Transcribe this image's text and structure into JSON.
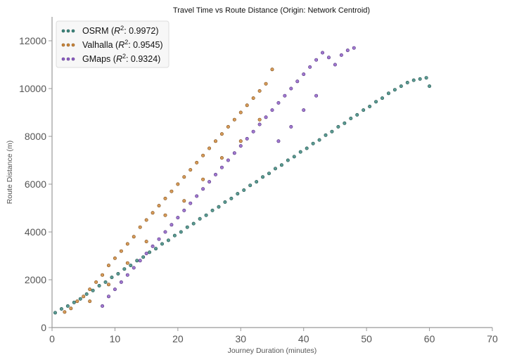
{
  "chart_data": {
    "type": "scatter",
    "title": "Travel Time vs Route Distance (Origin: Network Centroid)",
    "xlabel": "Journey Duration (minutes)",
    "ylabel": "Route Distance (m)",
    "xlim": [
      0,
      70
    ],
    "ylim": [
      0,
      13000
    ],
    "xticks": [
      0,
      10,
      20,
      30,
      40,
      50,
      60,
      70
    ],
    "yticks": [
      0,
      2000,
      4000,
      6000,
      8000,
      10000,
      12000
    ],
    "grid": false,
    "legend_position": "top-left",
    "series": [
      {
        "name": "OSRM",
        "r2_label": "0.9972",
        "color": "#3e8a80",
        "edge": "#1f4f4a",
        "points": [
          [
            0.5,
            620
          ],
          [
            1.5,
            780
          ],
          [
            2.5,
            900
          ],
          [
            3.5,
            1050
          ],
          [
            4.5,
            1200
          ],
          [
            5.5,
            1400
          ],
          [
            6.5,
            1550
          ],
          [
            7.5,
            1750
          ],
          [
            8.5,
            1900
          ],
          [
            9.5,
            2100
          ],
          [
            10.5,
            2250
          ],
          [
            11.5,
            2450
          ],
          [
            12.5,
            2600
          ],
          [
            13.5,
            2800
          ],
          [
            14.5,
            2950
          ],
          [
            15.5,
            3150
          ],
          [
            16.5,
            3300
          ],
          [
            17.5,
            3500
          ],
          [
            18.5,
            3650
          ],
          [
            19.5,
            3850
          ],
          [
            20.5,
            4000
          ],
          [
            21.5,
            4200
          ],
          [
            22.5,
            4350
          ],
          [
            23.5,
            4550
          ],
          [
            24.5,
            4700
          ],
          [
            25.5,
            4900
          ],
          [
            26.5,
            5050
          ],
          [
            27.5,
            5250
          ],
          [
            28.5,
            5400
          ],
          [
            29.5,
            5600
          ],
          [
            30.5,
            5750
          ],
          [
            31.5,
            5950
          ],
          [
            32.5,
            6100
          ],
          [
            33.5,
            6300
          ],
          [
            34.5,
            6450
          ],
          [
            35.5,
            6650
          ],
          [
            36.5,
            6800
          ],
          [
            37.5,
            7000
          ],
          [
            38.5,
            7150
          ],
          [
            39.5,
            7350
          ],
          [
            40.5,
            7500
          ],
          [
            41.5,
            7700
          ],
          [
            42.5,
            7850
          ],
          [
            43.5,
            8050
          ],
          [
            44.5,
            8200
          ],
          [
            45.5,
            8400
          ],
          [
            46.5,
            8550
          ],
          [
            47.5,
            8750
          ],
          [
            48.5,
            8900
          ],
          [
            49.5,
            9100
          ],
          [
            50.5,
            9250
          ],
          [
            51.5,
            9450
          ],
          [
            52.5,
            9600
          ],
          [
            53.5,
            9800
          ],
          [
            54.5,
            9950
          ],
          [
            55.5,
            10100
          ],
          [
            56.5,
            10250
          ],
          [
            57.5,
            10350
          ],
          [
            58.5,
            10400
          ],
          [
            59.5,
            10450
          ],
          [
            60,
            10100
          ]
        ]
      },
      {
        "name": "Valhalla",
        "r2_label": "0.9545",
        "color": "#d08a3c",
        "edge": "#7a4a16",
        "points": [
          [
            2,
            650
          ],
          [
            3,
            800
          ],
          [
            4,
            1100
          ],
          [
            5,
            1300
          ],
          [
            6,
            1600
          ],
          [
            7,
            1900
          ],
          [
            8,
            2200
          ],
          [
            9,
            2600
          ],
          [
            10,
            2900
          ],
          [
            11,
            3200
          ],
          [
            12,
            3500
          ],
          [
            13,
            3800
          ],
          [
            14,
            4200
          ],
          [
            15,
            4500
          ],
          [
            16,
            4800
          ],
          [
            17,
            5100
          ],
          [
            18,
            5400
          ],
          [
            19,
            5700
          ],
          [
            20,
            6000
          ],
          [
            21,
            6300
          ],
          [
            22,
            6600
          ],
          [
            23,
            6900
          ],
          [
            24,
            7200
          ],
          [
            25,
            7500
          ],
          [
            26,
            7800
          ],
          [
            27,
            8100
          ],
          [
            28,
            8400
          ],
          [
            29,
            8700
          ],
          [
            30,
            9000
          ],
          [
            31,
            9300
          ],
          [
            32,
            9600
          ],
          [
            33,
            9900
          ],
          [
            34,
            10200
          ],
          [
            35,
            10800
          ],
          [
            6,
            1100
          ],
          [
            9,
            1800
          ],
          [
            12,
            2700
          ],
          [
            15,
            3600
          ],
          [
            18,
            4700
          ],
          [
            21,
            5300
          ],
          [
            24,
            6200
          ],
          [
            27,
            7100
          ],
          [
            30,
            7800
          ],
          [
            33,
            8700
          ]
        ]
      },
      {
        "name": "GMaps",
        "r2_label": "0.9324",
        "color": "#9060c8",
        "edge": "#4e2f7a",
        "points": [
          [
            8,
            900
          ],
          [
            9,
            1300
          ],
          [
            10,
            1600
          ],
          [
            11,
            1900
          ],
          [
            12,
            2200
          ],
          [
            13,
            2500
          ],
          [
            14,
            2800
          ],
          [
            15,
            3100
          ],
          [
            16,
            3400
          ],
          [
            17,
            3700
          ],
          [
            18,
            4000
          ],
          [
            19,
            4300
          ],
          [
            20,
            4600
          ],
          [
            21,
            4900
          ],
          [
            22,
            5200
          ],
          [
            23,
            5500
          ],
          [
            24,
            5800
          ],
          [
            25,
            6100
          ],
          [
            26,
            6400
          ],
          [
            27,
            6700
          ],
          [
            28,
            7000
          ],
          [
            29,
            7300
          ],
          [
            30,
            7600
          ],
          [
            31,
            7900
          ],
          [
            32,
            8200
          ],
          [
            33,
            8500
          ],
          [
            34,
            8800
          ],
          [
            35,
            9100
          ],
          [
            36,
            9400
          ],
          [
            37,
            9700
          ],
          [
            38,
            10000
          ],
          [
            39,
            10300
          ],
          [
            40,
            10600
          ],
          [
            41,
            10900
          ],
          [
            42,
            11200
          ],
          [
            43,
            11500
          ],
          [
            44,
            11300
          ],
          [
            45,
            11000
          ],
          [
            46,
            11400
          ],
          [
            47,
            11600
          ],
          [
            48,
            11700
          ],
          [
            36,
            7800
          ],
          [
            38,
            8400
          ],
          [
            40,
            9100
          ],
          [
            42,
            9700
          ]
        ]
      }
    ]
  }
}
